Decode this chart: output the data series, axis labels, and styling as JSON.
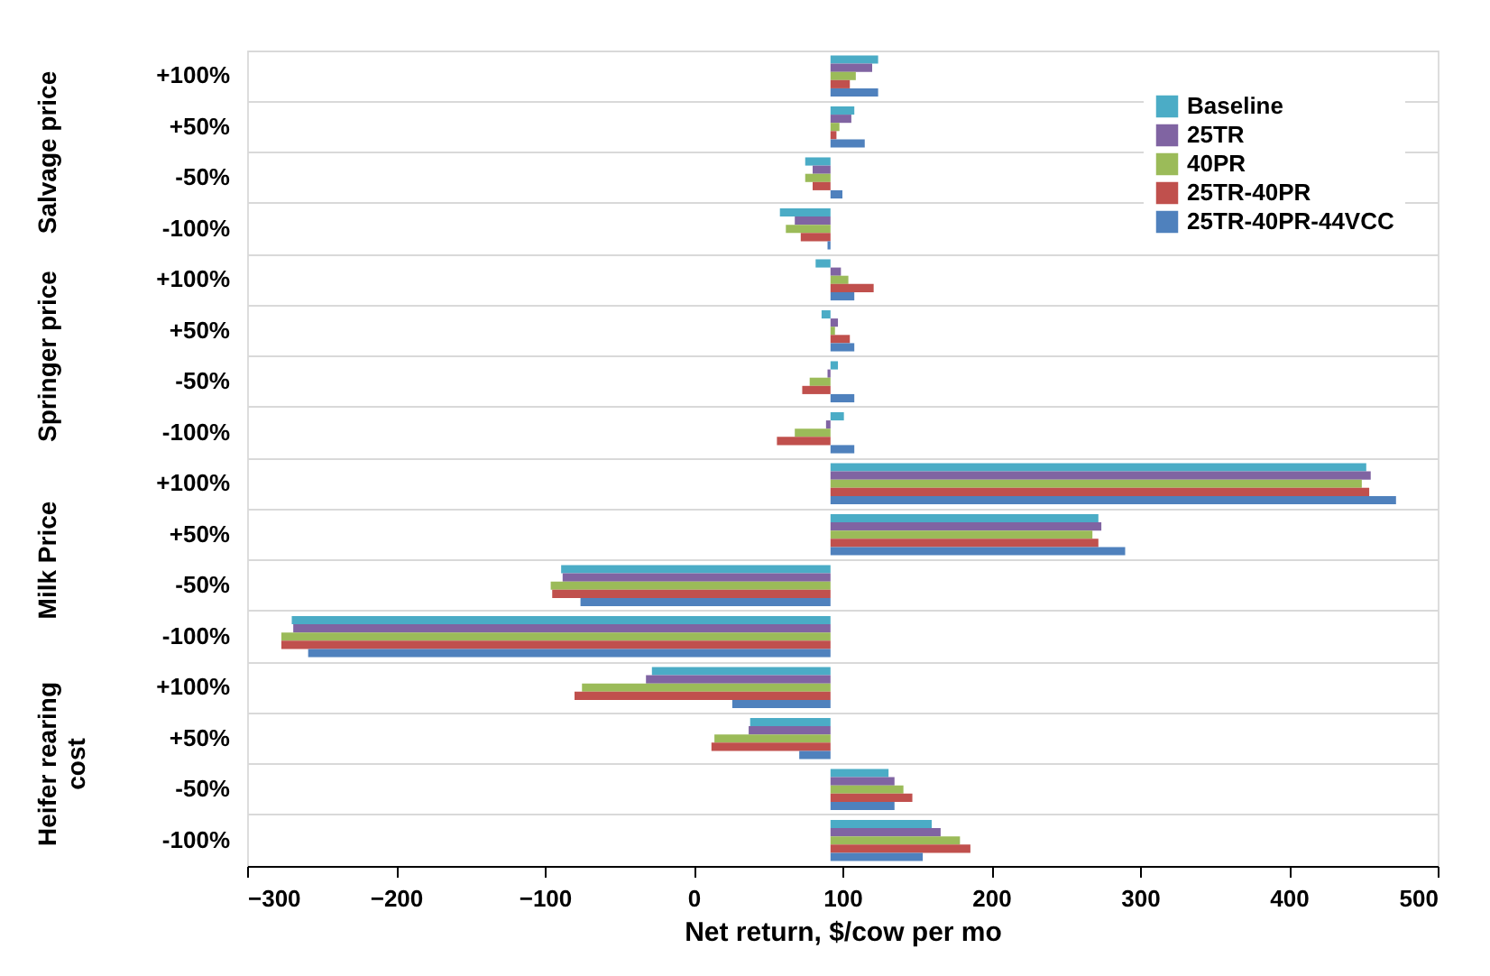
{
  "chart_data": {
    "type": "bar",
    "orientation": "horizontal",
    "xlabel": "Net return, $/cow per mo",
    "categories": [
      "+100%",
      "+50%",
      "-50%",
      "-100%",
      "+100%",
      "+50%",
      "-50%",
      "-100%",
      "+100%",
      "+50%",
      "-50%",
      "-100%",
      "+100%",
      "+50%",
      "-50%",
      "-100%"
    ],
    "annotations": [
      "Salvage price",
      "Springer price",
      "Milk Price",
      "Heifer rearing cost"
    ],
    "series": [
      {
        "name": "Baseline",
        "color": "#4bacc6",
        "base": [
          92,
          92,
          92,
          92,
          92,
          92,
          92,
          92,
          92,
          92,
          92,
          92,
          92,
          92,
          92,
          92
        ],
        "values": [
          32,
          16,
          -17,
          -34,
          -10,
          -6,
          5,
          9,
          360,
          180,
          -181,
          -362,
          -120,
          -54,
          39,
          68
        ]
      },
      {
        "name": "25TR",
        "color": "#8064a2",
        "base": [
          92,
          92,
          92,
          92,
          92,
          92,
          92,
          92,
          92,
          92,
          92,
          92,
          92,
          92,
          92,
          92
        ],
        "values": [
          28,
          14,
          -12,
          -24,
          7,
          5,
          -2,
          -3,
          363,
          182,
          -180,
          -361,
          -124,
          -55,
          43,
          74
        ]
      },
      {
        "name": "40PR",
        "color": "#9bbb59",
        "base": [
          92,
          92,
          92,
          92,
          92,
          92,
          92,
          92,
          92,
          92,
          92,
          92,
          92,
          92,
          92,
          92
        ],
        "values": [
          17,
          6,
          -17,
          -30,
          12,
          3,
          -14,
          -24,
          357,
          176,
          -188,
          -369,
          -167,
          -78,
          49,
          87
        ]
      },
      {
        "name": "25TR-40PR",
        "color": "#c0504d",
        "base": [
          92,
          92,
          92,
          92,
          92,
          92,
          92,
          92,
          92,
          92,
          92,
          92,
          92,
          92,
          92,
          92
        ],
        "values": [
          13,
          4,
          -12,
          -20,
          29,
          13,
          -19,
          -36,
          362,
          180,
          -187,
          -369,
          -172,
          -80,
          55,
          94
        ]
      },
      {
        "name": "25TR-40PR-44VCC",
        "color": "#4f81bd",
        "base": [
          92,
          92,
          92,
          92,
          92,
          92,
          92,
          92,
          92,
          92,
          92,
          92,
          92,
          92,
          92,
          92
        ],
        "values": [
          32,
          23,
          8,
          -2,
          16,
          16,
          16,
          16,
          380,
          198,
          -168,
          -351,
          -66,
          -21,
          43,
          62
        ]
      }
    ],
    "xlim": [
      -300,
      500
    ],
    "xticks": [
      -300,
      -200,
      -100,
      0,
      100,
      200,
      300,
      400,
      500
    ],
    "grid": "y",
    "legend": "top right"
  }
}
